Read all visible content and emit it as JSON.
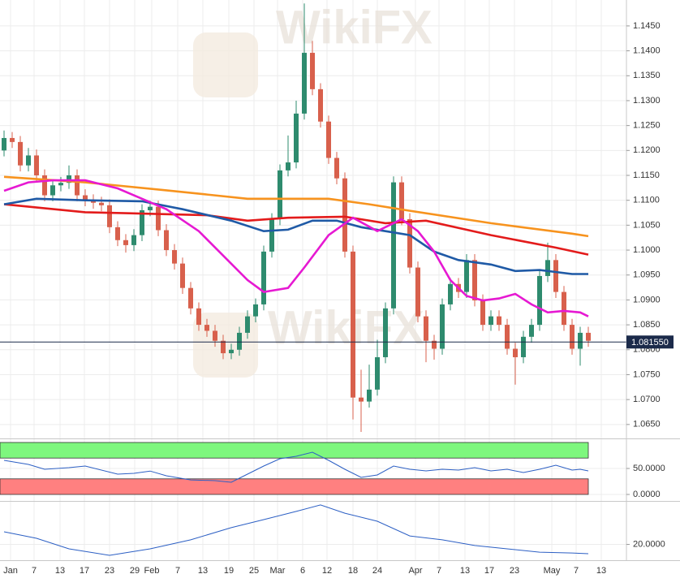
{
  "chart_data": [
    {
      "type": "candlestick",
      "xlim": [
        -0.5,
        76.7
      ],
      "xticks": [
        {
          "value": 0.8,
          "label": "Jan"
        },
        {
          "value": 3.7,
          "label": "7"
        },
        {
          "value": 6.9,
          "label": "13"
        },
        {
          "value": 9.9,
          "label": "17"
        },
        {
          "value": 13.0,
          "label": "23"
        },
        {
          "value": 16.1,
          "label": "29"
        },
        {
          "value": 18.2,
          "label": "Feb"
        },
        {
          "value": 21.4,
          "label": "7"
        },
        {
          "value": 24.5,
          "label": "13"
        },
        {
          "value": 27.7,
          "label": "19"
        },
        {
          "value": 30.8,
          "label": "25"
        },
        {
          "value": 33.7,
          "label": "Mar"
        },
        {
          "value": 36.8,
          "label": "6"
        },
        {
          "value": 39.8,
          "label": "12"
        },
        {
          "value": 43.0,
          "label": "18"
        },
        {
          "value": 46.0,
          "label": "24"
        },
        {
          "value": 50.7,
          "label": "Apr"
        },
        {
          "value": 53.6,
          "label": "7"
        },
        {
          "value": 56.8,
          "label": "13"
        },
        {
          "value": 59.8,
          "label": "17"
        },
        {
          "value": 62.9,
          "label": "23"
        },
        {
          "value": 67.5,
          "label": "May"
        },
        {
          "value": 70.5,
          "label": "7"
        },
        {
          "value": 73.6,
          "label": "13"
        }
      ],
      "ylim": [
        1.0622,
        1.1502
      ],
      "yticks": [
        {
          "value": 1.065,
          "label": "1.0650"
        },
        {
          "value": 1.07,
          "label": "1.0700"
        },
        {
          "value": 1.075,
          "label": "1.0750"
        },
        {
          "value": 1.08,
          "label": "1.0800"
        },
        {
          "value": 1.085,
          "label": "1.0850"
        },
        {
          "value": 1.09,
          "label": "1.0900"
        },
        {
          "value": 1.095,
          "label": "1.0950"
        },
        {
          "value": 1.1,
          "label": "1.1000"
        },
        {
          "value": 1.105,
          "label": "1.1050"
        },
        {
          "value": 1.11,
          "label": "1.1100"
        },
        {
          "value": 1.115,
          "label": "1.1150"
        },
        {
          "value": 1.12,
          "label": "1.1200"
        },
        {
          "value": 1.125,
          "label": "1.1250"
        },
        {
          "value": 1.13,
          "label": "1.1300"
        },
        {
          "value": 1.135,
          "label": "1.1350"
        },
        {
          "value": 1.14,
          "label": "1.1400"
        },
        {
          "value": 1.145,
          "label": "1.1450"
        }
      ],
      "up_color": "#2e8b6e",
      "down_color": "#d8604c",
      "ohlc": [
        [
          1.12,
          1.124,
          1.1188,
          1.1225
        ],
        [
          1.1225,
          1.1237,
          1.1205,
          1.1217
        ],
        [
          1.1217,
          1.1229,
          1.1158,
          1.117
        ],
        [
          1.117,
          1.1205,
          1.1158,
          1.119
        ],
        [
          1.119,
          1.1202,
          1.1138,
          1.115
        ],
        [
          1.115,
          1.1162,
          1.1098,
          1.111
        ],
        [
          1.111,
          1.1142,
          1.1098,
          1.113
        ],
        [
          1.113,
          1.1147,
          1.1118,
          1.1135
        ],
        [
          1.1135,
          1.117,
          1.1123,
          1.115
        ],
        [
          1.115,
          1.1162,
          1.1098,
          1.111
        ],
        [
          1.111,
          1.1122,
          1.1088,
          1.11
        ],
        [
          1.11,
          1.1112,
          1.1083,
          1.1095
        ],
        [
          1.1095,
          1.1107,
          1.1078,
          1.109
        ],
        [
          1.109,
          1.1102,
          1.1034,
          1.1046
        ],
        [
          1.1046,
          1.1058,
          1.1008,
          1.102
        ],
        [
          1.102,
          1.1032,
          1.0995,
          1.101
        ],
        [
          1.101,
          1.1042,
          1.0998,
          1.103
        ],
        [
          1.103,
          1.1092,
          1.1018,
          1.108
        ],
        [
          1.108,
          1.1099,
          1.1068,
          1.1087
        ],
        [
          1.1087,
          1.1099,
          1.1028,
          1.104
        ],
        [
          1.104,
          1.1052,
          1.0988,
          1.1
        ],
        [
          1.1,
          1.1012,
          1.0961,
          1.0973
        ],
        [
          1.0973,
          1.0985,
          1.0912,
          1.0924
        ],
        [
          1.0924,
          1.0936,
          1.0871,
          1.0883
        ],
        [
          1.0883,
          1.0895,
          1.0838,
          1.085
        ],
        [
          1.085,
          1.0862,
          1.0826,
          1.0838
        ],
        [
          1.0838,
          1.085,
          1.0806,
          1.0818
        ],
        [
          1.0818,
          1.083,
          1.0781,
          1.0793
        ],
        [
          1.0793,
          1.0812,
          1.0781,
          1.08
        ],
        [
          1.08,
          1.0846,
          1.0788,
          1.0834
        ],
        [
          1.0834,
          1.0879,
          1.0822,
          1.0867
        ],
        [
          1.0867,
          1.0903,
          1.0855,
          1.0891
        ],
        [
          1.0891,
          1.1009,
          1.0879,
          1.0997
        ],
        [
          1.0997,
          1.1074,
          1.0985,
          1.1062
        ],
        [
          1.1062,
          1.1172,
          1.105,
          1.116
        ],
        [
          1.116,
          1.123,
          1.1148,
          1.1176
        ],
        [
          1.1176,
          1.13,
          1.1164,
          1.1274
        ],
        [
          1.1274,
          1.1495,
          1.1262,
          1.1396
        ],
        [
          1.1396,
          1.142,
          1.1311,
          1.1323
        ],
        [
          1.1323,
          1.1335,
          1.1246,
          1.1258
        ],
        [
          1.1258,
          1.127,
          1.1173,
          1.1185
        ],
        [
          1.1185,
          1.1197,
          1.1132,
          1.1144
        ],
        [
          1.1144,
          1.1156,
          1.0985,
          1.0997
        ],
        [
          1.0997,
          1.1009,
          1.066,
          1.0704
        ],
        [
          1.0704,
          1.076,
          1.0635,
          1.0696
        ],
        [
          1.0696,
          1.077,
          1.0684,
          1.072
        ],
        [
          1.072,
          1.082,
          1.0708,
          1.0785
        ],
        [
          1.0785,
          1.0895,
          1.0773,
          1.0883
        ],
        [
          1.0883,
          1.1148,
          1.0871,
          1.1136
        ],
        [
          1.1136,
          1.1148,
          1.105,
          1.1062
        ],
        [
          1.1062,
          1.1074,
          1.0953,
          1.0965
        ],
        [
          1.0965,
          1.0977,
          1.0855,
          1.0867
        ],
        [
          1.0867,
          1.0879,
          1.0775,
          1.0818
        ],
        [
          1.0818,
          1.083,
          1.078,
          1.0802
        ],
        [
          1.0802,
          1.0903,
          1.079,
          1.0891
        ],
        [
          1.0891,
          1.0944,
          1.0879,
          1.0932
        ],
        [
          1.0932,
          1.0944,
          1.0904,
          1.0916
        ],
        [
          1.0916,
          1.0992,
          1.0904,
          1.098
        ],
        [
          1.098,
          1.0992,
          1.0887,
          1.0899
        ],
        [
          1.0899,
          1.0911,
          1.0838,
          1.085
        ],
        [
          1.085,
          1.0879,
          1.0838,
          1.0867
        ],
        [
          1.0867,
          1.0879,
          1.0838,
          1.085
        ],
        [
          1.085,
          1.0862,
          1.079,
          1.0802
        ],
        [
          1.0802,
          1.0814,
          1.073,
          1.0785
        ],
        [
          1.0785,
          1.0838,
          1.0773,
          1.0826
        ],
        [
          1.0826,
          1.0862,
          1.0814,
          1.085
        ],
        [
          1.085,
          1.096,
          1.0838,
          1.0948
        ],
        [
          1.0948,
          1.1015,
          1.0936,
          1.098
        ],
        [
          1.098,
          1.0992,
          1.0904,
          1.0916
        ],
        [
          1.0916,
          1.0928,
          1.0838,
          1.085
        ],
        [
          1.085,
          1.0862,
          1.079,
          1.0802
        ],
        [
          1.0802,
          1.0846,
          1.0768,
          1.0834
        ],
        [
          1.0834,
          1.0846,
          1.0806,
          1.0818
        ]
      ],
      "overlays": [
        {
          "color": "#f7931e",
          "x": [
            0,
            10,
            20,
            30,
            40,
            45,
            50,
            60,
            70,
            72
          ],
          "values": [
            1.1147,
            1.1136,
            1.112,
            1.1103,
            1.1103,
            1.1092,
            1.1079,
            1.1054,
            1.1033,
            1.1028
          ]
        },
        {
          "color": "#e31b1b",
          "x": [
            0,
            10,
            15,
            25,
            30,
            35,
            42,
            47,
            52,
            60,
            68,
            72
          ],
          "values": [
            1.1092,
            1.1076,
            1.1074,
            1.107,
            1.1059,
            1.1065,
            1.1067,
            1.1054,
            1.1059,
            1.103,
            1.1005,
            1.0991
          ]
        },
        {
          "color": "#1f5aa6",
          "x": [
            0,
            4,
            10,
            17,
            22,
            28,
            32,
            35,
            38,
            41,
            44,
            47,
            50,
            53,
            56,
            60,
            63,
            66,
            70,
            72
          ],
          "values": [
            1.1092,
            1.1103,
            1.11,
            1.1098,
            1.1082,
            1.1059,
            1.1038,
            1.1041,
            1.1059,
            1.1059,
            1.1046,
            1.1038,
            1.103,
            1.0997,
            1.098,
            1.0971,
            1.0958,
            1.096,
            1.0952,
            1.0952
          ]
        },
        {
          "color": "#e619d2",
          "x": [
            0,
            3,
            6,
            10,
            14,
            17,
            20,
            24,
            27,
            30,
            32,
            35,
            37,
            40,
            43,
            46,
            49,
            51,
            53,
            55,
            57,
            59,
            61,
            63,
            65,
            67,
            69,
            71,
            72
          ],
          "values": [
            1.1119,
            1.1136,
            1.114,
            1.114,
            1.1124,
            1.1103,
            1.1082,
            1.1038,
            1.0989,
            1.094,
            1.0916,
            1.0924,
            1.0965,
            1.103,
            1.1065,
            1.1038,
            1.1062,
            1.1038,
            1.0997,
            1.094,
            1.0908,
            1.0899,
            1.0903,
            1.0912,
            1.0891,
            1.0875,
            1.0878,
            1.0875,
            1.0867
          ]
        }
      ],
      "last_price": {
        "value": 1.08155,
        "label": "1.081550"
      },
      "watermarks": [
        "WikiFX",
        "WikiFX"
      ]
    },
    {
      "type": "line",
      "color": "#2c5fc4",
      "ylim": [
        -4.7,
        106.25
      ],
      "yticks": [
        {
          "value": 50,
          "label": "50.0000"
        },
        {
          "value": 0,
          "label": "0.0000"
        }
      ],
      "bands": [
        {
          "range": [
            70,
            100
          ],
          "color": "#7ef77e"
        },
        {
          "range": [
            0,
            30
          ],
          "color": "#ff8080"
        }
      ],
      "x": [
        0,
        3,
        5,
        8,
        10,
        14,
        16,
        18,
        20,
        23,
        26,
        28,
        30,
        32,
        34,
        36,
        38,
        40,
        42,
        44,
        46,
        48,
        50,
        52,
        54,
        56,
        58,
        60,
        62,
        64,
        66,
        68,
        70,
        71,
        72
      ],
      "values": [
        65.6,
        57.8,
        48.4,
        51.6,
        54.7,
        39.0,
        40.6,
        45.0,
        35.9,
        28.0,
        26.6,
        23.4,
        39.0,
        54.7,
        68.8,
        73.4,
        81.3,
        65.6,
        48.4,
        32.8,
        37.5,
        54.7,
        48.4,
        45.3,
        48.4,
        46.9,
        51.6,
        45.3,
        48.4,
        42.2,
        48.4,
        56.3,
        46.9,
        48.4,
        45.3
      ]
    },
    {
      "type": "line",
      "color": "#2c5fc4",
      "ylim": [
        10,
        46
      ],
      "yticks": [
        {
          "value": 20,
          "label": "20.0000"
        }
      ],
      "x": [
        0,
        4,
        8,
        13,
        18,
        23,
        28,
        32,
        36,
        39,
        42,
        46,
        50,
        54,
        58,
        62,
        66,
        70,
        72
      ],
      "values": [
        28.0,
        23.9,
        17.2,
        13.1,
        17.2,
        22.9,
        30.6,
        35.7,
        40.9,
        45.0,
        39.8,
        34.7,
        25.4,
        22.9,
        19.3,
        17.2,
        15.1,
        14.6,
        14.1
      ]
    }
  ]
}
